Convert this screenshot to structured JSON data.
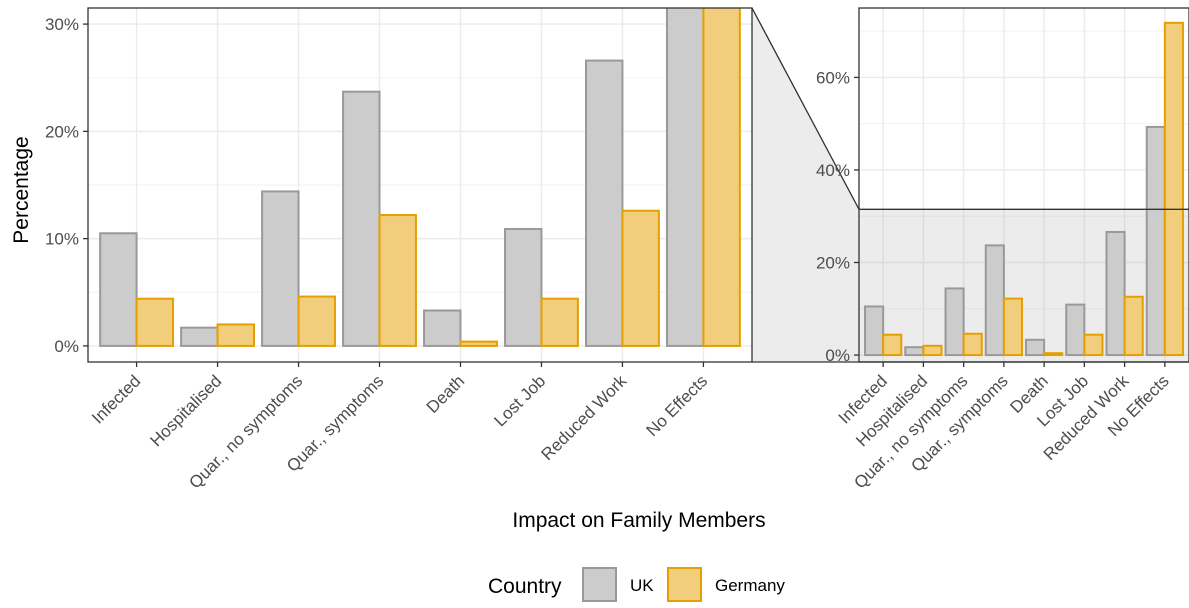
{
  "chart_data": {
    "type": "bar",
    "xlabel": "Impact on Family Members",
    "ylabel": "Percentage",
    "categories": [
      "Infected",
      "Hospitalised",
      "Quar., no symptoms",
      "Quar., symptoms",
      "Death",
      "Lost Job",
      "Reduced Work",
      "No Effects"
    ],
    "series": [
      {
        "name": "UK",
        "values": [
          10.5,
          1.7,
          14.4,
          23.7,
          3.3,
          10.9,
          26.6,
          49.3
        ]
      },
      {
        "name": "Germany",
        "values": [
          4.4,
          2.0,
          4.6,
          12.2,
          0.4,
          4.4,
          12.6,
          71.8
        ]
      }
    ],
    "main_ylim": [
      -1.5,
      31.5
    ],
    "main_yticks": [
      0,
      10,
      20,
      30
    ],
    "zoom_ylim": [
      -1.5,
      75
    ],
    "zoom_yticks": [
      0,
      20,
      40,
      60
    ],
    "tick_suffix": "%",
    "legend": {
      "title": "Country",
      "placement": "bottom"
    },
    "colors": {
      "UK_fill": "#cccccc",
      "UK_stroke": "#999999",
      "Germany_fill": "#f2cd7b",
      "Germany_stroke": "#e69f00"
    },
    "grid": true
  }
}
